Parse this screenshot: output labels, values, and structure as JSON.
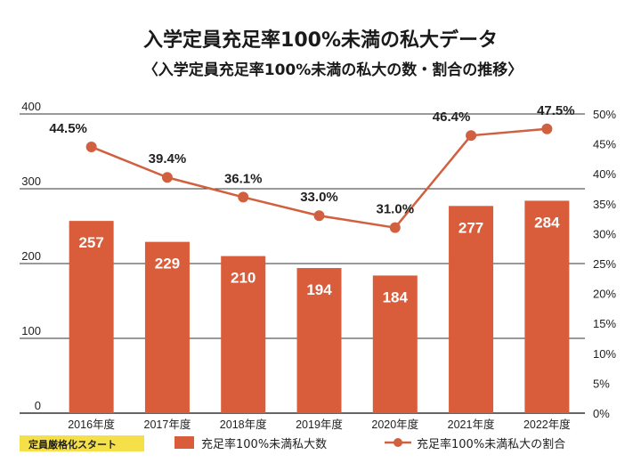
{
  "chart_data": {
    "type": "bar+line",
    "title": "入学定員充足率100%未満の私大データ",
    "subtitle": "〈入学定員充足率100%未満の私大の数・割合の推移〉",
    "categories": [
      "2016年度",
      "2017年度",
      "2018年度",
      "2019年度",
      "2020年度",
      "2021年度",
      "2022年度"
    ],
    "series": [
      {
        "name": "充足率100%未満私大数",
        "type": "bar",
        "axis": "left",
        "values": [
          257,
          229,
          210,
          194,
          184,
          277,
          284
        ],
        "labels": [
          "257",
          "229",
          "210",
          "194",
          "184",
          "277",
          "284"
        ]
      },
      {
        "name": "充足率100%未満私大の割合",
        "type": "line",
        "axis": "right",
        "values": [
          44.5,
          39.4,
          36.1,
          33.0,
          31.0,
          46.4,
          47.5
        ],
        "labels": [
          "44.5%",
          "39.4%",
          "36.1%",
          "33.0%",
          "31.0%",
          "46.4%",
          "47.5%"
        ]
      }
    ],
    "y_left": {
      "ylim": [
        0,
        400
      ],
      "ticks": [
        "0",
        "100",
        "200",
        "300",
        "400"
      ]
    },
    "y_right": {
      "ylim": [
        0,
        50
      ],
      "ticks": [
        "0%",
        "5%",
        "10%",
        "15%",
        "20%",
        "25%",
        "30%",
        "35%",
        "40%",
        "45%",
        "50%"
      ]
    },
    "grid": "horizontal",
    "legend_position": "bottom",
    "annotation": "定員厳格化スタート",
    "colors": {
      "bar": "#d95c3b",
      "line": "#d0603f",
      "grid": "#333333",
      "annotation_bg": "#f5e04a"
    }
  }
}
